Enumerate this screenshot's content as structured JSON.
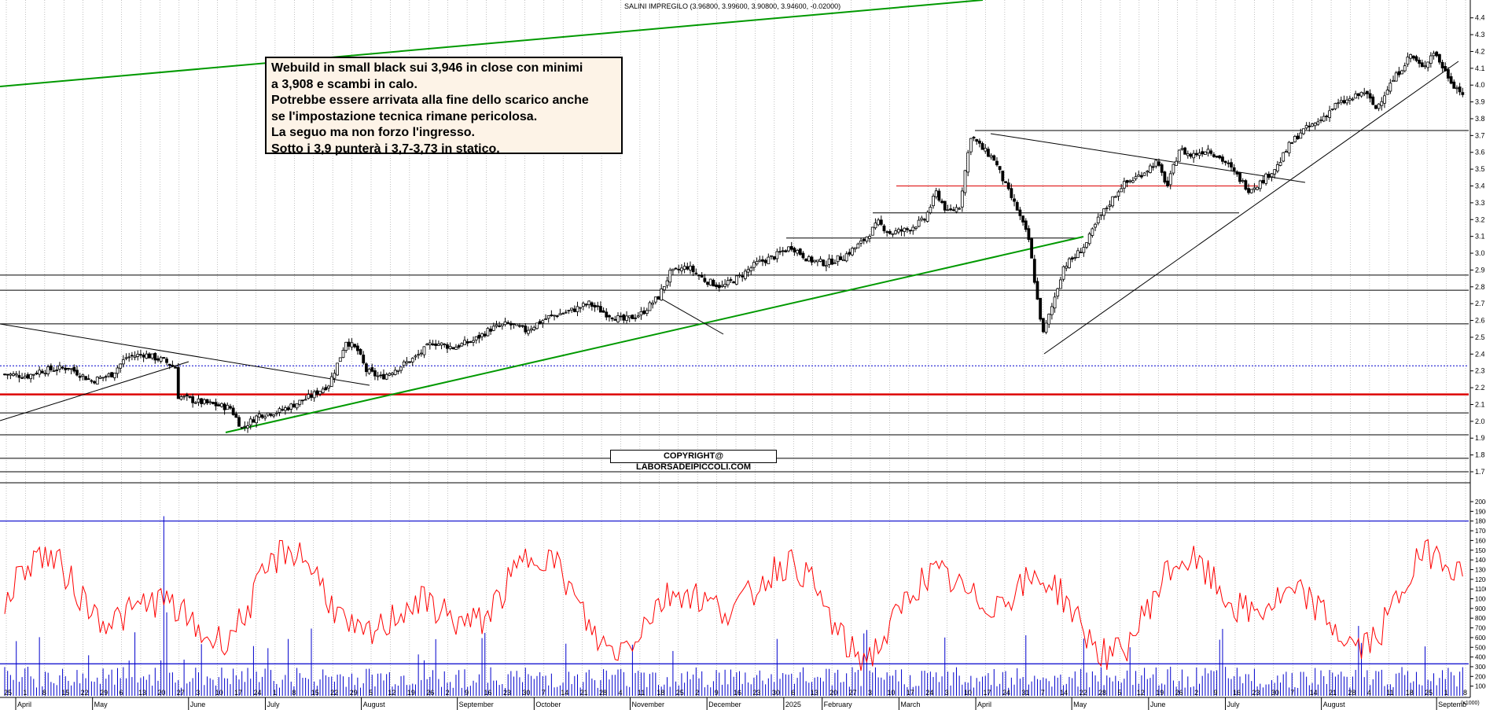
{
  "header": {
    "title": "SALINI IMPREGILO (3.96800, 3.99600, 3.90800, 3.94600, -0.02000)"
  },
  "note": {
    "lines": [
      "Webuild in small black sui 3,946 in close con minimi",
      "a 3,908 e scambi in calo.",
      "Potrebbe essere arrivata alla fine dello scarico anche",
      "se l'impostazione tecnica rimane pericolosa.",
      "La seguo ma non forzo l'ingresso.",
      "Sotto i 3,9 punterà i 3,7-3,73 in statico."
    ]
  },
  "copyright": "COPYRIGHT@ LABORSADEIPICCOLI.COM",
  "colors": {
    "candle": "#000000",
    "grid": "#9a9a9a",
    "trend_green": "#009900",
    "level_red": "#dd0000",
    "level_blue": "#0000cc",
    "oscillator": "#ff0000",
    "volume": "#0000cc"
  },
  "chart_data": [
    {
      "type": "candlestick",
      "ylim": [
        1.7,
        4.45
      ],
      "yticks": [
        "1.7",
        "1.8",
        "1.9",
        "2.0",
        "2.1",
        "2.2",
        "2.3",
        "2.4",
        "2.5",
        "2.6",
        "2.7",
        "2.8",
        "2.9",
        "3.0",
        "3.1",
        "3.2",
        "3.3",
        "3.4",
        "3.5",
        "3.6",
        "3.7",
        "3.8",
        "3.9",
        "4.0",
        "4.1",
        "4.2",
        "4.3",
        "4.4"
      ],
      "anchors": [
        [
          0,
          2.28
        ],
        [
          8,
          2.27
        ],
        [
          12,
          2.3
        ],
        [
          22,
          2.32
        ],
        [
          30,
          2.24
        ],
        [
          37,
          2.28
        ],
        [
          42,
          2.38
        ],
        [
          48,
          2.4
        ],
        [
          55,
          2.36
        ],
        [
          59,
          2.32
        ],
        [
          60,
          2.15
        ],
        [
          66,
          2.12
        ],
        [
          72,
          2.1
        ],
        [
          78,
          2.08
        ],
        [
          82,
          1.96
        ],
        [
          88,
          2.04
        ],
        [
          95,
          2.06
        ],
        [
          100,
          2.1
        ],
        [
          106,
          2.15
        ],
        [
          112,
          2.22
        ],
        [
          115,
          2.34
        ],
        [
          118,
          2.48
        ],
        [
          122,
          2.42
        ],
        [
          125,
          2.3
        ],
        [
          130,
          2.26
        ],
        [
          137,
          2.33
        ],
        [
          142,
          2.38
        ],
        [
          148,
          2.47
        ],
        [
          155,
          2.44
        ],
        [
          162,
          2.48
        ],
        [
          168,
          2.55
        ],
        [
          174,
          2.58
        ],
        [
          180,
          2.54
        ],
        [
          188,
          2.62
        ],
        [
          196,
          2.66
        ],
        [
          202,
          2.7
        ],
        [
          208,
          2.64
        ],
        [
          214,
          2.6
        ],
        [
          220,
          2.64
        ],
        [
          226,
          2.74
        ],
        [
          230,
          2.88
        ],
        [
          236,
          2.92
        ],
        [
          242,
          2.84
        ],
        [
          248,
          2.8
        ],
        [
          254,
          2.86
        ],
        [
          260,
          2.94
        ],
        [
          266,
          2.98
        ],
        [
          272,
          3.04
        ],
        [
          278,
          2.96
        ],
        [
          284,
          2.94
        ],
        [
          290,
          2.98
        ],
        [
          296,
          3.06
        ],
        [
          302,
          3.18
        ],
        [
          306,
          3.12
        ],
        [
          312,
          3.14
        ],
        [
          318,
          3.2
        ],
        [
          322,
          3.36
        ],
        [
          326,
          3.24
        ],
        [
          330,
          3.28
        ],
        [
          334,
          3.7
        ],
        [
          338,
          3.62
        ],
        [
          342,
          3.56
        ],
        [
          346,
          3.4
        ],
        [
          350,
          3.26
        ],
        [
          354,
          3.08
        ],
        [
          357,
          2.72
        ],
        [
          359,
          2.52
        ],
        [
          362,
          2.68
        ],
        [
          366,
          2.92
        ],
        [
          370,
          2.98
        ],
        [
          374,
          3.06
        ],
        [
          378,
          3.2
        ],
        [
          382,
          3.3
        ],
        [
          386,
          3.4
        ],
        [
          392,
          3.46
        ],
        [
          398,
          3.54
        ],
        [
          402,
          3.4
        ],
        [
          406,
          3.62
        ],
        [
          410,
          3.58
        ],
        [
          416,
          3.62
        ],
        [
          422,
          3.54
        ],
        [
          426,
          3.46
        ],
        [
          430,
          3.38
        ],
        [
          434,
          3.42
        ],
        [
          440,
          3.52
        ],
        [
          444,
          3.64
        ],
        [
          448,
          3.72
        ],
        [
          454,
          3.78
        ],
        [
          460,
          3.88
        ],
        [
          466,
          3.92
        ],
        [
          470,
          3.96
        ],
        [
          474,
          3.86
        ],
        [
          478,
          3.98
        ],
        [
          482,
          4.08
        ],
        [
          486,
          4.18
        ],
        [
          490,
          4.1
        ],
        [
          494,
          4.2
        ],
        [
          498,
          4.08
        ],
        [
          501,
          4.0
        ],
        [
          504,
          3.95
        ]
      ],
      "n": 505,
      "horizontal_levels": [
        {
          "value": 3.73,
          "color": "black"
        },
        {
          "value": 3.4,
          "color": "red"
        },
        {
          "value": 3.24,
          "color": "black"
        },
        {
          "value": 3.09,
          "color": "black"
        },
        {
          "value": 2.87,
          "color": "black"
        },
        {
          "value": 2.78,
          "color": "black"
        },
        {
          "value": 2.58,
          "color": "black"
        },
        {
          "value": 2.33,
          "color": "blue-dotted"
        },
        {
          "value": 2.16,
          "color": "red"
        },
        {
          "value": 2.05,
          "color": "black"
        },
        {
          "value": 1.92,
          "color": "black"
        },
        {
          "value": 1.78,
          "color": "black"
        },
        {
          "value": 1.7,
          "color": "black"
        }
      ]
    },
    {
      "type": "line-and-bar",
      "ylim": [
        0,
        20000
      ],
      "yticks": [
        "1000",
        "2000",
        "3000",
        "4000",
        "5000",
        "6000",
        "7000",
        "8000",
        "9000",
        "10000",
        "11000",
        "12000",
        "13000",
        "14000",
        "15000",
        "16000",
        "17000",
        "18000",
        "19000",
        "20000"
      ],
      "scale_label": "(x1000)",
      "reference_levels": [
        18000,
        3300
      ]
    }
  ],
  "axis": {
    "day_ticks": [
      "25",
      "1",
      "8",
      "15",
      "22",
      "29",
      "6",
      "13",
      "20",
      "27",
      "3",
      "10",
      "17",
      "24",
      "1",
      "8",
      "15",
      "22",
      "29",
      "5",
      "12",
      "19",
      "26",
      "2",
      "9",
      "16",
      "23",
      "30",
      "7",
      "14",
      "21",
      "28",
      "4",
      "11",
      "18",
      "25",
      "2",
      "9",
      "16",
      "23",
      "30",
      "6",
      "13",
      "20",
      "27",
      "3",
      "10",
      "17",
      "24",
      "3",
      "10",
      "17",
      "24",
      "31",
      "7",
      "14",
      "22",
      "28",
      "5",
      "12",
      "19",
      "26",
      "2",
      "9",
      "16",
      "23",
      "30",
      "7",
      "14",
      "21",
      "28",
      "4",
      "11",
      "18",
      "25",
      "1",
      "8"
    ],
    "month_labels": [
      "April",
      "May",
      "June",
      "July",
      "August",
      "September",
      "October",
      "November",
      "December",
      "2025",
      "February",
      "March",
      "April",
      "May",
      "June",
      "July",
      "August",
      "Septemb"
    ]
  }
}
